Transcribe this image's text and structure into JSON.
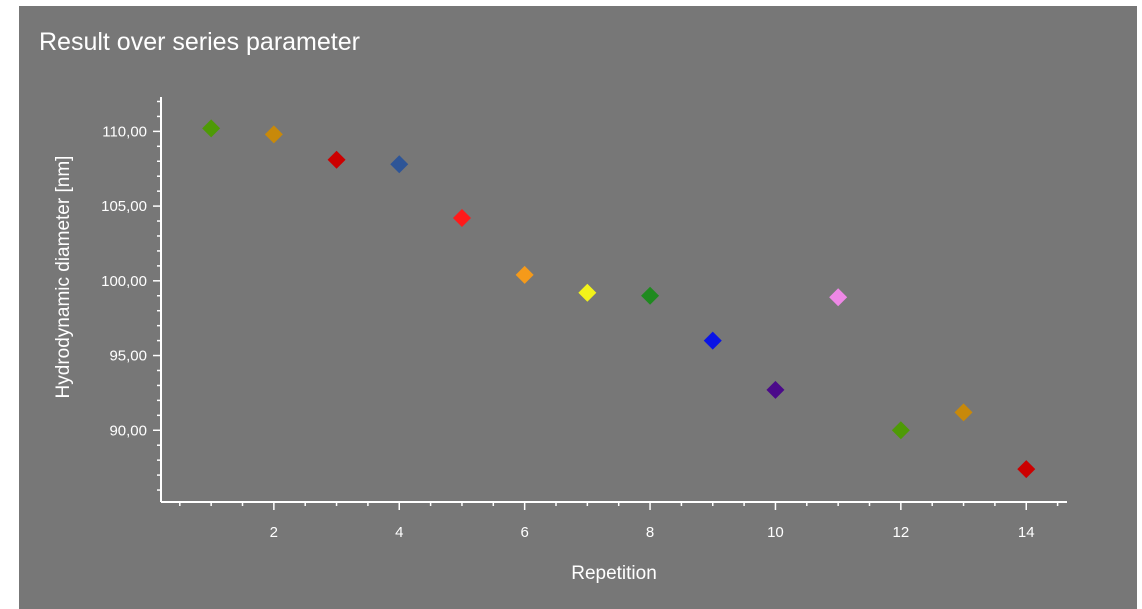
{
  "chart_data": {
    "type": "scatter",
    "title": "Result over series parameter",
    "xlabel": "Repetition",
    "ylabel": "Hydrodynamic diameter [nm]",
    "xlim": [
      0.2,
      14.65
    ],
    "ylim": [
      85.2,
      112.3
    ],
    "x_ticks": [
      2,
      4,
      6,
      8,
      10,
      12,
      14
    ],
    "x_minor_step": 0.5,
    "y_ticks": [
      90,
      95,
      100,
      105,
      110
    ],
    "y_tick_labels": [
      "90,00",
      "95,00",
      "100,00",
      "105,00",
      "110,00"
    ],
    "y_minor_step": 1,
    "marker": "diamond",
    "grid": false,
    "legend": "none",
    "background_color": "#777777",
    "points": [
      {
        "x": 1,
        "y": 110.2,
        "color": "#4e9a06"
      },
      {
        "x": 2,
        "y": 109.8,
        "color": "#c8890a"
      },
      {
        "x": 3,
        "y": 108.1,
        "color": "#cc0000"
      },
      {
        "x": 4,
        "y": 107.8,
        "color": "#2e5597"
      },
      {
        "x": 5,
        "y": 104.2,
        "color": "#ff1a1a"
      },
      {
        "x": 6,
        "y": 100.4,
        "color": "#f59a1a"
      },
      {
        "x": 7,
        "y": 99.2,
        "color": "#f2f21a"
      },
      {
        "x": 8,
        "y": 99.0,
        "color": "#1f8a1f"
      },
      {
        "x": 9,
        "y": 96.0,
        "color": "#0a14e6"
      },
      {
        "x": 10,
        "y": 92.7,
        "color": "#4b0a8a"
      },
      {
        "x": 11,
        "y": 98.9,
        "color": "#ee88e6"
      },
      {
        "x": 12,
        "y": 90.0,
        "color": "#4e9a06"
      },
      {
        "x": 13,
        "y": 91.2,
        "color": "#c8890a"
      },
      {
        "x": 14,
        "y": 87.4,
        "color": "#cc0000"
      }
    ]
  }
}
